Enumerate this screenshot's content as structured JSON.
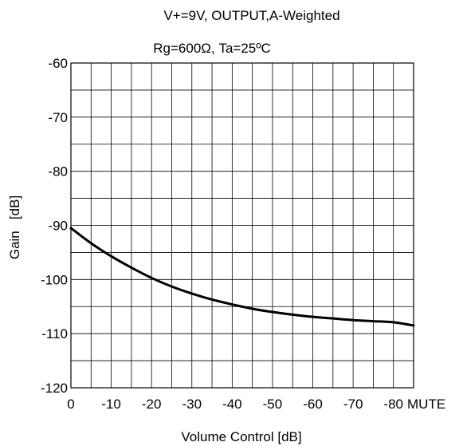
{
  "chart_data": {
    "type": "line",
    "title_lines": [
      "V+=9V, OUTPUT,A-Weighted",
      "Rg=600Ω, Ta=25ºC"
    ],
    "xlabel": "Volume Control [dB]",
    "ylabel": "Gain   [dB]",
    "x_tick_labels": [
      "0",
      "-10",
      "-20",
      "-30",
      "-40",
      "-50",
      "-60",
      "-70",
      "-80",
      "MUTE"
    ],
    "y_tick_labels": [
      "-60",
      "-70",
      "-80",
      "-90",
      "-100",
      "-110",
      "-120"
    ],
    "xlim": [
      0,
      -85
    ],
    "ylim": [
      -120,
      -60
    ],
    "grid": true,
    "series": [
      {
        "color": "#000000",
        "x": [
          0,
          -5,
          -10,
          -15,
          -20,
          -25,
          -30,
          -35,
          -40,
          -45,
          -50,
          -55,
          -60,
          -65,
          -70,
          -75,
          -80,
          -85
        ],
        "y": [
          -90.5,
          -93.3,
          -95.7,
          -97.8,
          -99.7,
          -101.3,
          -102.6,
          -103.7,
          -104.6,
          -105.4,
          -106.0,
          -106.5,
          -106.9,
          -107.2,
          -107.5,
          -107.7,
          -107.9,
          -108.5
        ]
      }
    ]
  }
}
